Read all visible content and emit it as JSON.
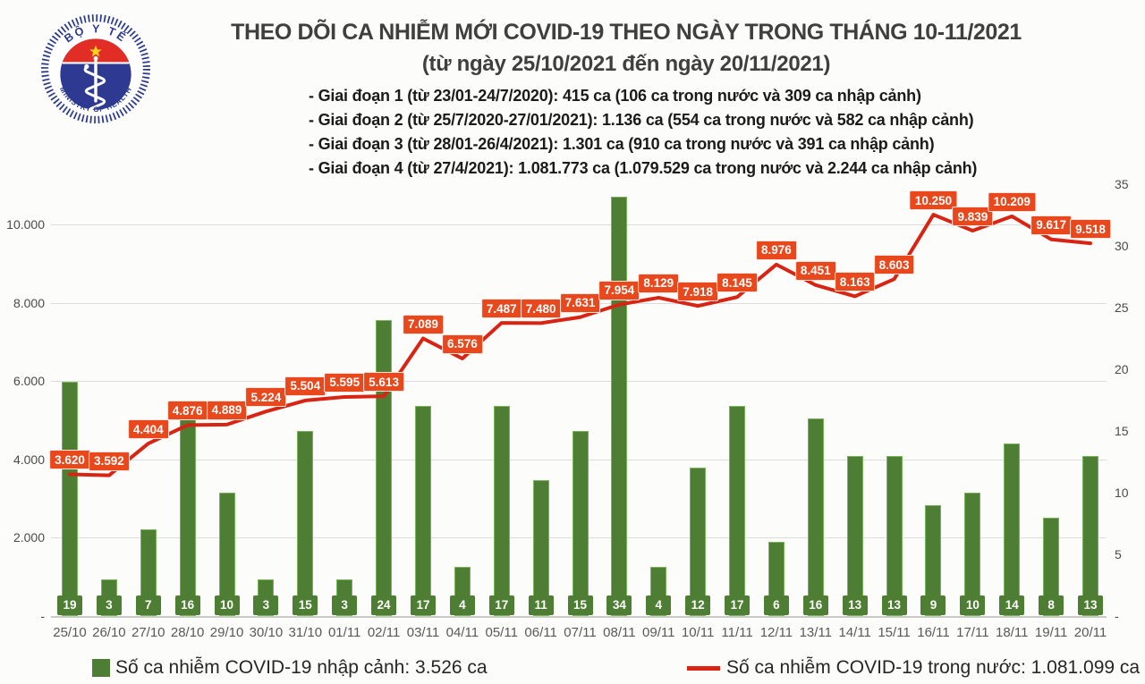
{
  "header": {
    "title": "THEO DÕI CA NHIỄM MỚI COVID-19 THEO NGÀY TRONG THÁNG 10-11/2021",
    "subtitle": "(từ ngày 25/10/2021 đến ngày 20/11/2021)",
    "phases": [
      "- Giai đoạn 1 (từ 23/01-24/7/2020): 415 ca (106 ca trong nước và 309 ca nhập cảnh)",
      "- Giai đoạn 2 (từ 25/7/2020-27/01/2021): 1.136 ca (554 ca trong nước và 582 ca nhập cảnh)",
      "- Giai đoạn 3 (từ 28/01-26/4/2021): 1.301 ca (910 ca trong nước và 391 ca nhập cảnh)",
      "- Giai đoạn 4 (từ 27/4/2021): 1.081.773 ca (1.079.529 ca trong nước và 2.244 ca nhập cảnh)"
    ]
  },
  "logo": {
    "top_text": "BỘ Y TẾ",
    "bottom_text": "MINISTRY OF HEALTH"
  },
  "chart_data": {
    "type": "combo",
    "title": "THEO DÕI CA NHIỄM MỚI COVID-19 THEO NGÀY TRONG THÁNG 10-11/2021",
    "subtitle": "(từ ngày 25/10/2021 đến ngày 20/11/2021)",
    "categories": [
      "25/10",
      "26/10",
      "27/10",
      "28/10",
      "29/10",
      "30/10",
      "31/10",
      "01/11",
      "02/11",
      "03/11",
      "04/11",
      "05/11",
      "06/11",
      "07/11",
      "08/11",
      "09/11",
      "10/11",
      "11/11",
      "12/11",
      "13/11",
      "14/11",
      "15/11",
      "16/11",
      "17/11",
      "18/11",
      "19/11",
      "20/11"
    ],
    "series": [
      {
        "name": "Số ca nhiễm COVID-19 nhập cảnh",
        "type": "bar",
        "axis": "right",
        "color": "#4e7e33",
        "border_color": "#79b35a",
        "values": [
          19,
          3,
          7,
          16,
          10,
          3,
          15,
          3,
          24,
          17,
          4,
          17,
          11,
          15,
          34,
          4,
          12,
          17,
          6,
          16,
          13,
          13,
          9,
          10,
          14,
          8,
          13
        ],
        "data_labels": [
          "19",
          "3",
          "7",
          "16",
          "10",
          "3",
          "15",
          "3",
          "24",
          "17",
          "4",
          "17",
          "11",
          "15",
          "34",
          "4",
          "12",
          "17",
          "6",
          "16",
          "13",
          "13",
          "9",
          "10",
          "14",
          "8",
          "13"
        ]
      },
      {
        "name": "Số ca nhiễm COVID-19 trong nước",
        "type": "line",
        "axis": "left",
        "color": "#d92413",
        "label_bg": "#e8481c",
        "values": [
          3620,
          3592,
          4404,
          4876,
          4889,
          5224,
          5504,
          5595,
          5613,
          7089,
          6576,
          7487,
          7480,
          7631,
          7954,
          8129,
          7918,
          8145,
          8976,
          8451,
          8163,
          8603,
          10250,
          9839,
          10209,
          9617,
          9518
        ],
        "data_labels": [
          "3.620",
          "3.592",
          "4.404",
          "4.876",
          "4.889",
          "5.224",
          "5.504",
          "5.595",
          "5.613",
          "7.089",
          "6.576",
          "7.487",
          "7.480",
          "7.631",
          "7.954",
          "8.129",
          "7.918",
          "8.145",
          "8.976",
          "8.451",
          "8.163",
          "8.603",
          "10.250",
          "9.839",
          "10.209",
          "9.617",
          "9.518"
        ]
      }
    ],
    "left_axis": {
      "min": 0,
      "max": 10000,
      "tick_step": 2000,
      "tick_labels": [
        "-",
        "2.000",
        "4.000",
        "6.000",
        "8.000",
        "10.000"
      ]
    },
    "right_axis": {
      "min": 0,
      "max": 35,
      "tick_step": 5,
      "tick_labels": [
        "-",
        "5",
        "10",
        "15",
        "20",
        "25",
        "30",
        "35"
      ]
    },
    "grid": "horizontal",
    "legend_position": "bottom"
  },
  "legend": {
    "items": [
      {
        "swatch": "green-square",
        "color": "#4e7e33",
        "label": "Số ca nhiễm COVID-19 nhập cảnh: 3.526 ca"
      },
      {
        "swatch": "red-line",
        "color": "#d92413",
        "label": "Số ca nhiễm COVID-19 trong nước: 1.081.099 ca"
      }
    ]
  }
}
